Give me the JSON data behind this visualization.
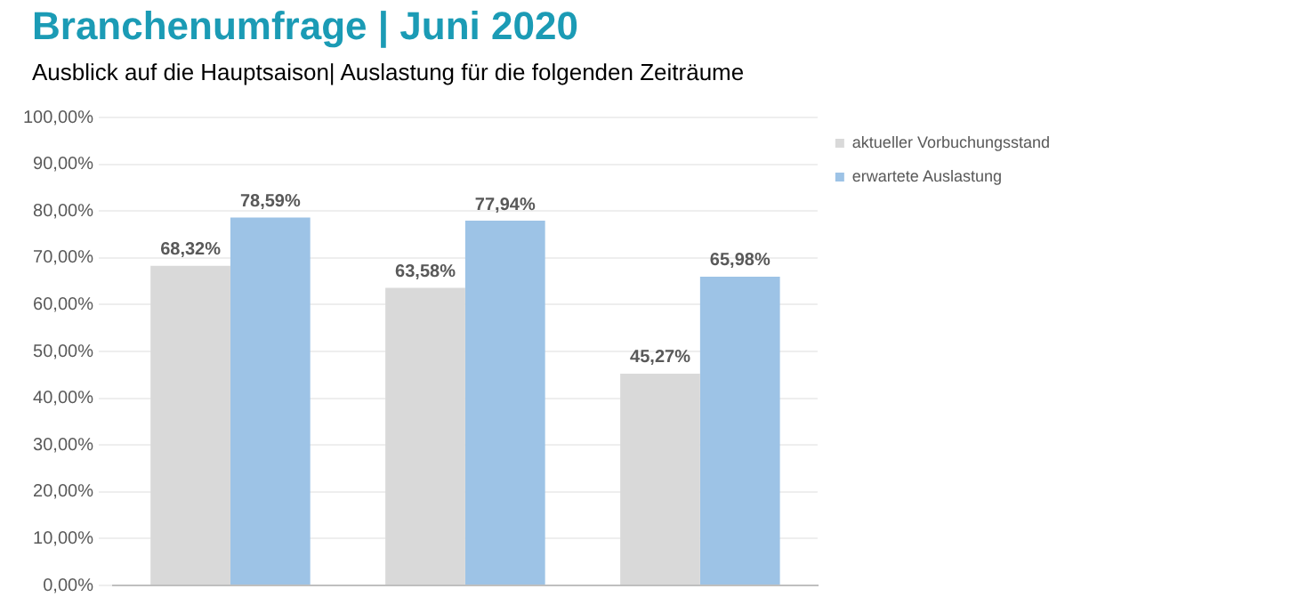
{
  "chart_data": {
    "type": "bar",
    "title": "Branchenumfrage | Juni 2020",
    "subtitle": "Ausblick auf die Hauptsaison| Auslastung für die folgenden Zeiträume",
    "categories": [
      null,
      null,
      null
    ],
    "series": [
      {
        "name": "aktueller Vorbuchungsstand",
        "color": "#d9d9d9",
        "values": [
          68.32,
          63.58,
          45.27
        ],
        "value_labels": [
          "68,32%",
          "63,58%",
          "45,27%"
        ]
      },
      {
        "name": "erwartete Auslastung",
        "color": "#9dc3e6",
        "values": [
          78.59,
          77.94,
          65.98
        ],
        "value_labels": [
          "78,59%",
          "77,94%",
          "65,98%"
        ]
      }
    ],
    "ylim": [
      0,
      100
    ],
    "yticks": [
      {
        "value": 0,
        "label": "0,00%"
      },
      {
        "value": 10,
        "label": "10,00%"
      },
      {
        "value": 20,
        "label": "20,00%"
      },
      {
        "value": 30,
        "label": "30,00%"
      },
      {
        "value": 40,
        "label": "40,00%"
      },
      {
        "value": 50,
        "label": "50,00%"
      },
      {
        "value": 60,
        "label": "60,00%"
      },
      {
        "value": 70,
        "label": "70,00%"
      },
      {
        "value": 80,
        "label": "80,00%"
      },
      {
        "value": 90,
        "label": "90,00%"
      },
      {
        "value": 100,
        "label": "100,00%"
      }
    ],
    "grid": "y",
    "legend": "top right"
  }
}
